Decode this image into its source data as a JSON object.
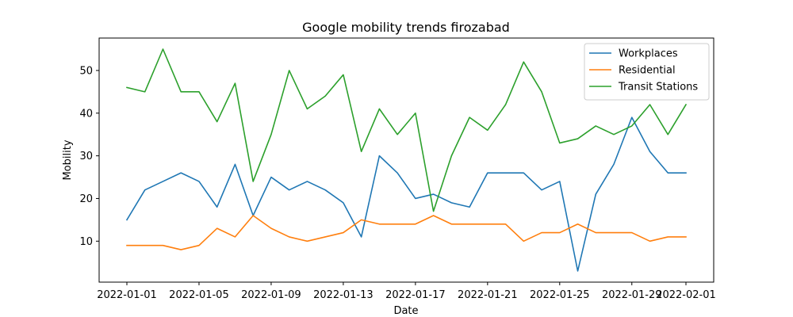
{
  "chart_data": {
    "type": "line",
    "title": "Google mobility trends firozabad",
    "xlabel": "Date",
    "ylabel": "Mobility",
    "x": [
      "2022-01-01",
      "2022-01-02",
      "2022-01-03",
      "2022-01-04",
      "2022-01-05",
      "2022-01-06",
      "2022-01-07",
      "2022-01-08",
      "2022-01-09",
      "2022-01-10",
      "2022-01-11",
      "2022-01-12",
      "2022-01-13",
      "2022-01-14",
      "2022-01-15",
      "2022-01-16",
      "2022-01-17",
      "2022-01-18",
      "2022-01-19",
      "2022-01-20",
      "2022-01-21",
      "2022-01-22",
      "2022-01-23",
      "2022-01-24",
      "2022-01-25",
      "2022-01-26",
      "2022-01-27",
      "2022-01-28",
      "2022-01-29",
      "2022-01-30",
      "2022-01-31",
      "2022-02-01"
    ],
    "x_ticks": [
      "2022-01-01",
      "2022-01-05",
      "2022-01-09",
      "2022-01-13",
      "2022-01-17",
      "2022-01-21",
      "2022-01-25",
      "2022-01-29",
      "2022-02-01"
    ],
    "y_ticks": [
      10,
      20,
      30,
      40,
      50
    ],
    "ylim": [
      0.4,
      57.6
    ],
    "grid": false,
    "legend_position": "top-right",
    "series": [
      {
        "name": "Workplaces",
        "color": "#1f77b4",
        "values": [
          15,
          22,
          24,
          26,
          24,
          18,
          28,
          16,
          25,
          22,
          24,
          22,
          19,
          11,
          30,
          26,
          20,
          21,
          19,
          18,
          26,
          26,
          26,
          22,
          24,
          3,
          21,
          28,
          39,
          31,
          26,
          26
        ]
      },
      {
        "name": "Residential",
        "color": "#ff7f0e",
        "values": [
          9,
          9,
          9,
          8,
          9,
          13,
          11,
          16,
          13,
          11,
          10,
          11,
          12,
          15,
          14,
          14,
          14,
          16,
          14,
          14,
          14,
          14,
          10,
          12,
          12,
          14,
          12,
          12,
          12,
          10,
          11,
          11
        ]
      },
      {
        "name": "Transit Stations",
        "color": "#2ca02c",
        "values": [
          46,
          45,
          55,
          45,
          45,
          38,
          47,
          24,
          35,
          50,
          41,
          44,
          49,
          31,
          41,
          35,
          40,
          17,
          30,
          39,
          36,
          42,
          52,
          45,
          33,
          34,
          37,
          35,
          37,
          42,
          35,
          42
        ]
      }
    ]
  }
}
